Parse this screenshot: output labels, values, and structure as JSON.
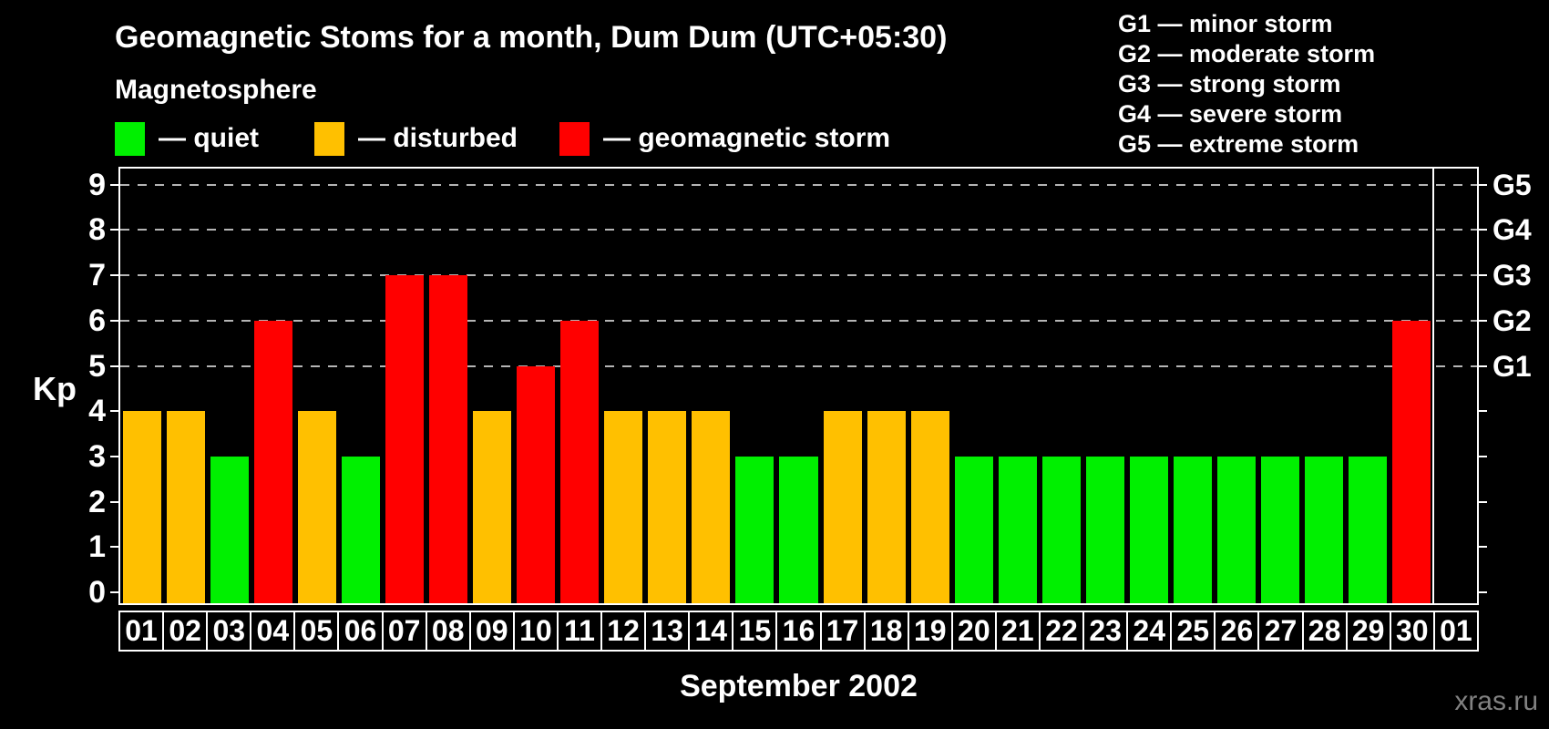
{
  "header": {
    "title": "Geomagnetic Stoms for a month, Dum Dum (UTC+05:30)",
    "legend_heading": "Magnetosphere",
    "legend_items": [
      {
        "key": "quiet",
        "label": "— quiet",
        "color": "#00f000"
      },
      {
        "key": "disturbed",
        "label": "— disturbed",
        "color": "#ffc000"
      },
      {
        "key": "storm",
        "label": "— geomagnetic storm",
        "color": "#ff0000"
      }
    ],
    "g_scale_legend": [
      "G1 — minor storm",
      "G2 — moderate storm",
      "G3 — strong storm",
      "G4 — severe storm",
      "G5 — extreme storm"
    ]
  },
  "footer": {
    "x_axis_title": "September 2002",
    "watermark": "xras.ru"
  },
  "chart_data": {
    "type": "bar",
    "title": "Geomagnetic Stoms for a month, Dum Dum (UTC+05:30)",
    "xlabel": "September 2002",
    "ylabel": "Kp",
    "ylim": [
      0,
      9.4
    ],
    "y_ticks": [
      0,
      1,
      2,
      3,
      4,
      5,
      6,
      7,
      8,
      9
    ],
    "grid_levels": [
      5,
      6,
      7,
      8,
      9
    ],
    "grid_style": "dashed horizontal gray lines at Kp 5-9 only",
    "legend_position": "top-left",
    "right_axis_labels": [
      {
        "kp": 5,
        "label": "G1"
      },
      {
        "kp": 6,
        "label": "G2"
      },
      {
        "kp": 7,
        "label": "G3"
      },
      {
        "kp": 8,
        "label": "G4"
      },
      {
        "kp": 9,
        "label": "G5"
      }
    ],
    "categories": [
      "01",
      "02",
      "03",
      "04",
      "05",
      "06",
      "07",
      "08",
      "09",
      "10",
      "11",
      "12",
      "13",
      "14",
      "15",
      "16",
      "17",
      "18",
      "19",
      "20",
      "21",
      "22",
      "23",
      "24",
      "25",
      "26",
      "27",
      "28",
      "29",
      "30",
      "01"
    ],
    "series": [
      {
        "name": "Kp index",
        "values": [
          4,
          4,
          3,
          6,
          4,
          3,
          7,
          7,
          4,
          5,
          6,
          4,
          4,
          4,
          3,
          3,
          4,
          4,
          4,
          3,
          3,
          3,
          3,
          3,
          3,
          3,
          3,
          3,
          3,
          6,
          null
        ],
        "statuses": [
          "disturbed",
          "disturbed",
          "quiet",
          "storm",
          "disturbed",
          "quiet",
          "storm",
          "storm",
          "disturbed",
          "storm",
          "storm",
          "disturbed",
          "disturbed",
          "disturbed",
          "quiet",
          "quiet",
          "disturbed",
          "disturbed",
          "disturbed",
          "quiet",
          "quiet",
          "quiet",
          "quiet",
          "quiet",
          "quiet",
          "quiet",
          "quiet",
          "quiet",
          "quiet",
          "storm",
          null
        ]
      }
    ],
    "status_colors": {
      "quiet": "#00f000",
      "disturbed": "#ffc000",
      "storm": "#ff0000"
    },
    "month_separator_after_index": 29,
    "note_last_category": "01 is the first day of the next month, no bar drawn"
  }
}
